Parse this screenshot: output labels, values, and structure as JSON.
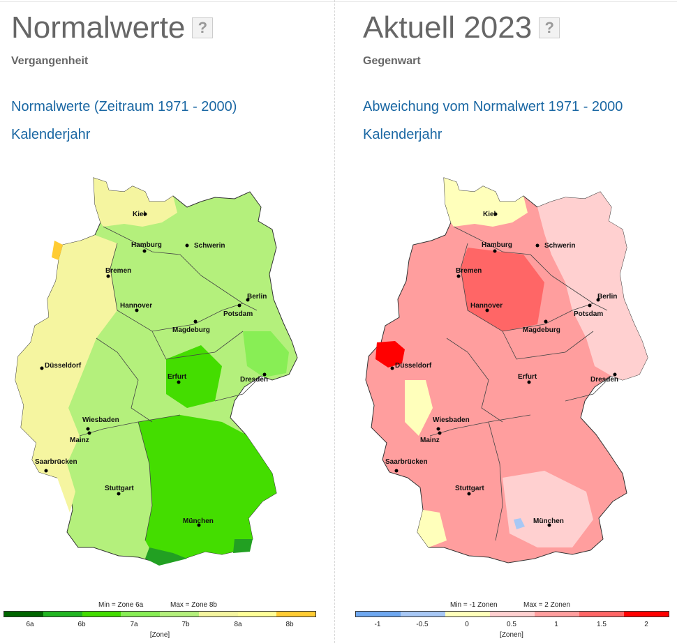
{
  "left": {
    "title": "Normalwerte",
    "help_label": "?",
    "subtitle": "Vergangenheit",
    "link_period": "Normalwerte (Zeitraum 1971 - 2000)",
    "link_year": "Kalenderjahr",
    "legend": {
      "min_text": "Min = Zone 6a",
      "max_text": "Max = Zone 8b",
      "ticks": [
        "6a",
        "6b",
        "7a",
        "7b",
        "8a",
        "8b"
      ],
      "unit": "[Zone]",
      "colors": [
        "#006600",
        "#22b622",
        "#44dd00",
        "#88ee55",
        "#b4f07c",
        "#f5f5a0",
        "#ffff99",
        "#ffcc33"
      ]
    }
  },
  "right": {
    "title": "Aktuell 2023",
    "help_label": "?",
    "subtitle": "Gegenwart",
    "link_period": "Abweichung vom Normalwert 1971 - 2000",
    "link_year": "Kalenderjahr",
    "legend": {
      "min_text": "Min = -1 Zonen",
      "max_text": "Max = 2 Zonen",
      "ticks": [
        "-1",
        "-0.5",
        "0",
        "0.5",
        "1",
        "1.5",
        "2"
      ],
      "unit": "[Zonen]",
      "colors": [
        "#6fa8f0",
        "#a8c8f5",
        "#ffffbb",
        "#ffd0d0",
        "#ff9e9e",
        "#ff6666",
        "#ff0000"
      ]
    }
  },
  "cities": [
    "Kiel",
    "Hamburg",
    "Schwerin",
    "Bremen",
    "Berlin",
    "Hannover",
    "Potsdam",
    "Magdeburg",
    "Düsseldorf",
    "Erfurt",
    "Dresden",
    "Wiesbaden",
    "Mainz",
    "Saarbrücken",
    "Stuttgart",
    "München"
  ]
}
